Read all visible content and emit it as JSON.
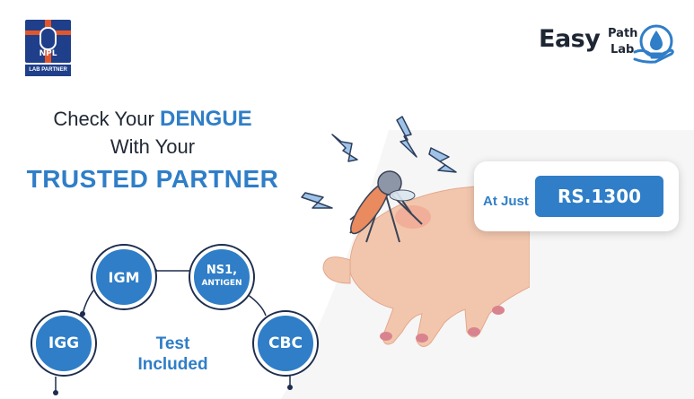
{
  "logos": {
    "npl": {
      "text": "NPL",
      "badge": "LAB PARTNER"
    },
    "easy_path_lab": {
      "easy": "Easy",
      "path": "Path",
      "lab": "Lab",
      "icon": "hand-drop-icon"
    }
  },
  "headline": {
    "line1_prefix": "Check Your",
    "line1_accent": "DENGUE",
    "line2": "With Your",
    "line3": "TRUSTED PARTNER"
  },
  "offer": {
    "label": "At Just",
    "price": "RS.1300"
  },
  "tests": {
    "label_line1": "Test",
    "label_line2": "Included",
    "items": [
      {
        "name": "IGM"
      },
      {
        "name_line1": "NS1,",
        "name_line2": "ANTIGEN"
      },
      {
        "name": "IGG"
      },
      {
        "name": "CBC"
      }
    ]
  },
  "colors": {
    "accent": "#2f7ec7",
    "dark": "#222a36",
    "skin": "#f2c6ad",
    "bg_shape": "#f6f6f6"
  }
}
